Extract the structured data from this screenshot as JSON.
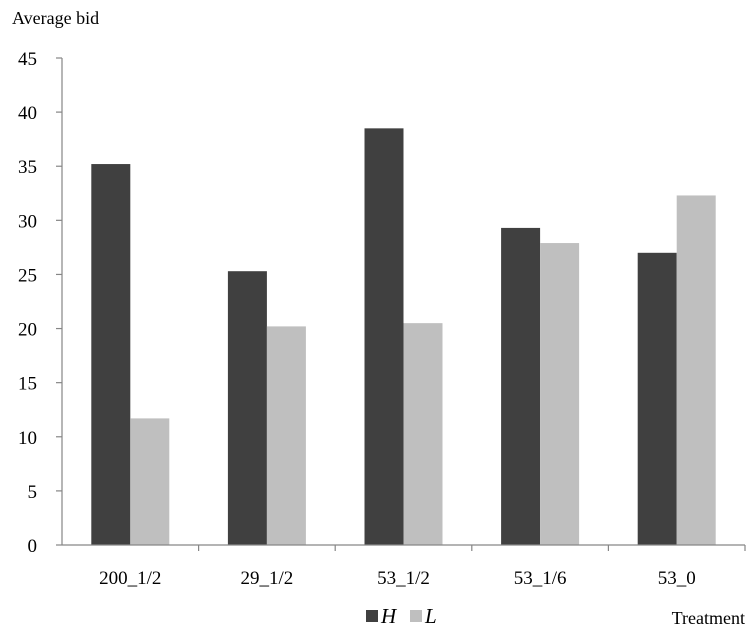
{
  "chart_data": {
    "type": "bar",
    "title": "",
    "ylabel": "Average bid",
    "xlabel": "Treatment",
    "ylim": [
      0,
      45
    ],
    "ytick_step": 5,
    "yticks": [
      "0",
      "5",
      "10",
      "15",
      "20",
      "25",
      "30",
      "35",
      "40",
      "45"
    ],
    "categories": [
      "200_1/2",
      "29_1/2",
      "53_1/2",
      "53_1/6",
      "53_0"
    ],
    "series": [
      {
        "name": "H",
        "color": "#404040",
        "values": [
          35.2,
          25.3,
          38.5,
          29.3,
          27.0
        ]
      },
      {
        "name": "L",
        "color": "#bfbfbf",
        "values": [
          11.7,
          20.2,
          20.5,
          27.9,
          32.3
        ]
      }
    ],
    "grid": false,
    "legend_position": "bottom"
  }
}
